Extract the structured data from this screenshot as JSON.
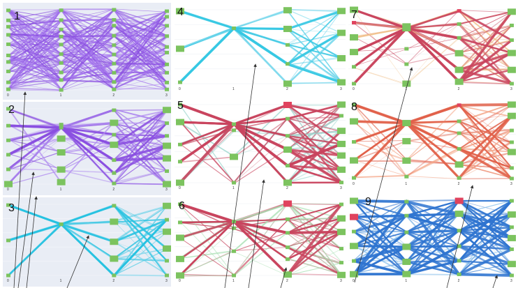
{
  "axis_ticks": [
    "0",
    "1",
    "2",
    "3"
  ],
  "panels": [
    {
      "number": "1",
      "line": "#8a4fe0",
      "alt": "#a779ef",
      "node": "#7cc35f",
      "accent": null,
      "bg": "#e9edf5"
    },
    {
      "number": "2",
      "line": "#8a4fe0",
      "alt": "#b08cf0",
      "node": "#7cc35f",
      "accent": null,
      "bg": "#e9edf5"
    },
    {
      "number": "3",
      "line": "#26c2e0",
      "alt": "#7fd7ec",
      "node": "#7cc35f",
      "accent": null,
      "bg": "#e9edf5"
    },
    {
      "number": "4",
      "line": "#36c8e3",
      "alt": "#8adcef",
      "node": "#7cc35f",
      "accent": null,
      "bg": "#ffffff"
    },
    {
      "number": "5",
      "line": "#c9445e",
      "alt": "#9fd7cf",
      "node": "#7cc35f",
      "accent": "#e0435e",
      "bg": "#ffffff"
    },
    {
      "number": "6",
      "line": "#c9445e",
      "alt": "#a8e0b3",
      "node": "#7cc35f",
      "accent": "#e0435e",
      "bg": "#ffffff"
    },
    {
      "number": "7",
      "line": "#c9445e",
      "alt": "#f2c48f",
      "node": "#7cc35f",
      "accent": "#e0435e",
      "bg": "#ffffff"
    },
    {
      "number": "8",
      "line": "#e0604a",
      "alt": "#f4a88a",
      "node": "#7cc35f",
      "accent": "#e0435e",
      "bg": "#ffffff"
    },
    {
      "number": "9",
      "line": "#2f74d0",
      "alt": "#8fc3ec",
      "node": "#7cc35f",
      "accent": "#e0435e",
      "bg": "#ffffff"
    }
  ]
}
